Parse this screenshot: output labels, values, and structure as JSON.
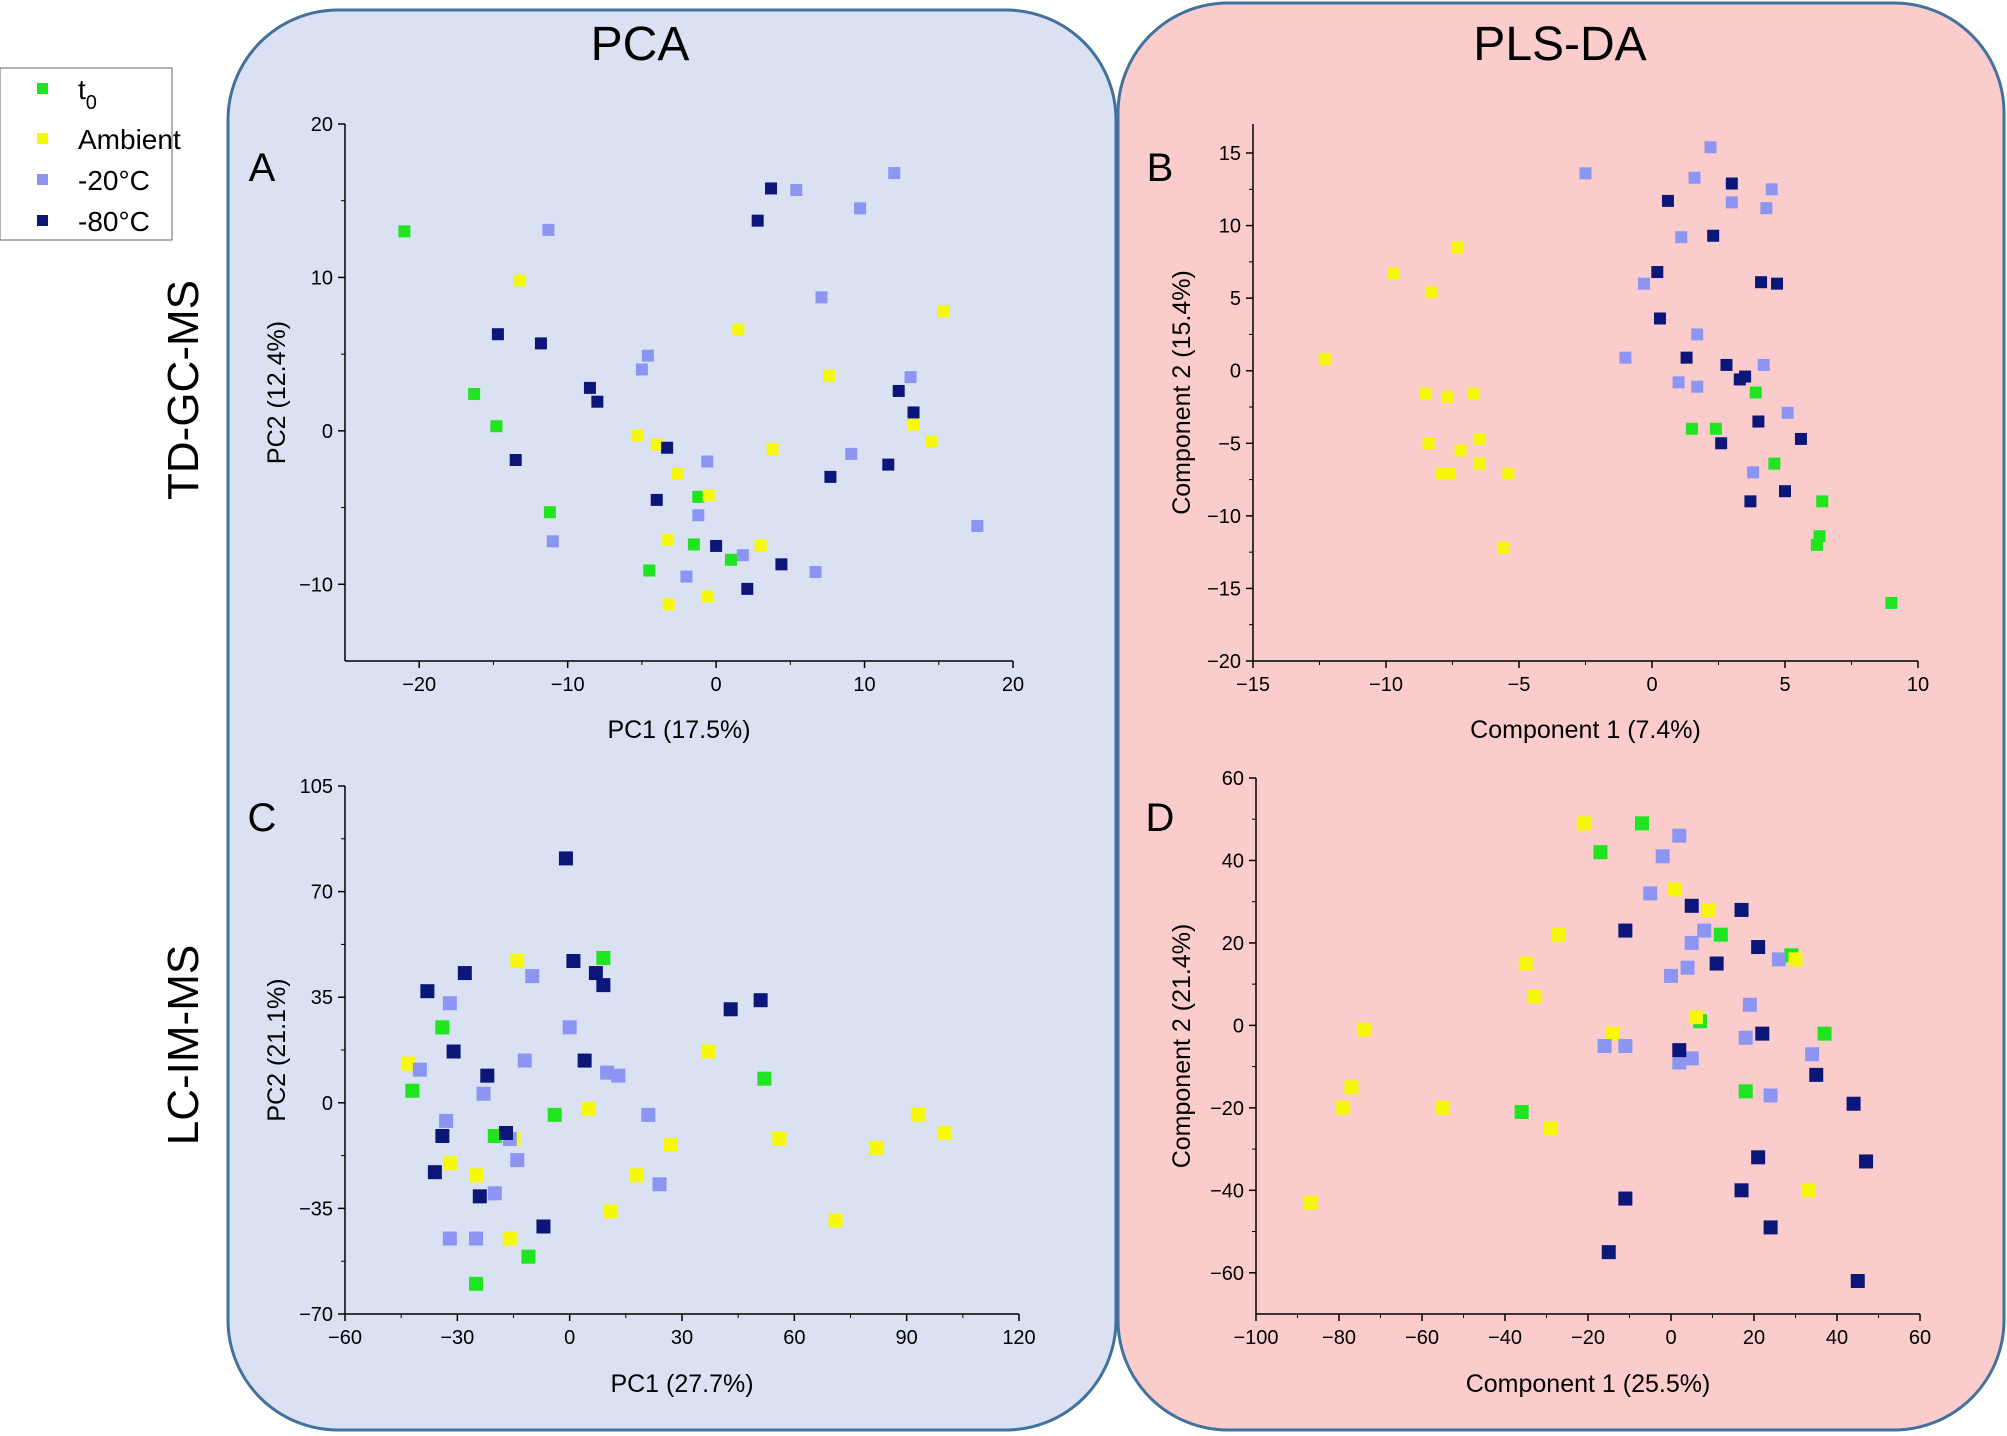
{
  "figure": {
    "pca_title": "PCA",
    "plsda_title": "PLS-DA",
    "row1_label": "TD-GC-MS",
    "row2_label": "LC-IM-MS",
    "colors": {
      "pca_bg": "#d9e1f2",
      "plsda_bg": "#fbcccc",
      "panel_border": "#41719c"
    }
  },
  "legend": {
    "items": [
      {
        "label": "t",
        "sub": "0",
        "color": "#1fe41f"
      },
      {
        "label": "Ambient",
        "sub": "",
        "color": "#f7f70c"
      },
      {
        "label": "-20°C",
        "sub": "",
        "color": "#8c95f2"
      },
      {
        "label": "-80°C",
        "sub": "",
        "color": "#0c1679"
      }
    ]
  },
  "chart_data": [
    {
      "type": "scatter",
      "panel": "A",
      "xlabel": "PC1 (17.5%)",
      "ylabel": "PC2 (12.4%)",
      "xlim": [
        -25,
        20
      ],
      "ylim": [
        -15,
        20
      ],
      "xticks": [
        -20,
        -10,
        0,
        10,
        20
      ],
      "yticks": [
        -10,
        0,
        10,
        20
      ],
      "series": [
        {
          "name": "t0",
          "points": [
            [
              -21,
              13
            ],
            [
              -16.3,
              2.4
            ],
            [
              -14.8,
              0.3
            ],
            [
              -11.2,
              -5.3
            ],
            [
              -4.5,
              -9.1
            ],
            [
              -1.2,
              -4.3
            ],
            [
              -1.5,
              -7.4
            ],
            [
              1,
              -8.4
            ]
          ]
        },
        {
          "name": "Ambient",
          "points": [
            [
              -13.2,
              9.8
            ],
            [
              -5.3,
              -0.3
            ],
            [
              -4,
              -0.9
            ],
            [
              -3.3,
              -7.1
            ],
            [
              -3.2,
              -11.3
            ],
            [
              -2.6,
              -2.8
            ],
            [
              -0.6,
              -10.8
            ],
            [
              -0.5,
              -4.2
            ],
            [
              1.5,
              6.6
            ],
            [
              3,
              -7.5
            ],
            [
              3.8,
              -1.2
            ],
            [
              7.6,
              3.6
            ],
            [
              13.3,
              0.4
            ],
            [
              14.5,
              -0.7
            ],
            [
              15.3,
              7.8
            ]
          ]
        },
        {
          "name": "-20°C",
          "points": [
            [
              -11.3,
              13.1
            ],
            [
              -11,
              -7.2
            ],
            [
              -5,
              4
            ],
            [
              -4.6,
              4.9
            ],
            [
              -2,
              -9.5
            ],
            [
              -1.2,
              -5.5
            ],
            [
              -0.6,
              -2
            ],
            [
              1.8,
              -8.1
            ],
            [
              5.4,
              15.7
            ],
            [
              6.7,
              -9.2
            ],
            [
              7.1,
              8.7
            ],
            [
              9.1,
              -1.5
            ],
            [
              9.7,
              14.5
            ],
            [
              12,
              16.8
            ],
            [
              13.1,
              3.5
            ],
            [
              17.6,
              -6.2
            ]
          ]
        },
        {
          "name": "-80°C",
          "points": [
            [
              -14.7,
              6.3
            ],
            [
              -13.5,
              -1.9
            ],
            [
              -11.8,
              5.7
            ],
            [
              -8.5,
              2.8
            ],
            [
              -8,
              1.9
            ],
            [
              -4,
              -4.5
            ],
            [
              -3.3,
              -1.1
            ],
            [
              0,
              -7.5
            ],
            [
              2.1,
              -10.3
            ],
            [
              2.8,
              13.7
            ],
            [
              3.7,
              15.8
            ],
            [
              4.4,
              -8.7
            ],
            [
              7.7,
              -3
            ],
            [
              11.6,
              -2.2
            ],
            [
              12.3,
              2.6
            ],
            [
              13.3,
              1.2
            ]
          ]
        }
      ]
    },
    {
      "type": "scatter",
      "panel": "B",
      "xlabel": "Component 1 (7.4%)",
      "ylabel": "Component 2 (15.4%)",
      "xlim": [
        -15,
        10
      ],
      "ylim": [
        -20,
        17
      ],
      "xticks": [
        -15,
        -10,
        -5,
        0,
        5,
        10
      ],
      "yticks": [
        -20,
        -15,
        -10,
        -5,
        0,
        5,
        10,
        15
      ],
      "series": [
        {
          "name": "t0",
          "points": [
            [
              1.5,
              -4
            ],
            [
              2.4,
              -4
            ],
            [
              3.9,
              -1.5
            ],
            [
              4.6,
              -6.4
            ],
            [
              6.2,
              -12
            ],
            [
              6.3,
              -11.4
            ],
            [
              6.4,
              -9
            ],
            [
              9,
              -16
            ]
          ]
        },
        {
          "name": "Ambient",
          "points": [
            [
              -12.3,
              0.8
            ],
            [
              -9.7,
              6.7
            ],
            [
              -8.5,
              -1.6
            ],
            [
              -8.4,
              -5
            ],
            [
              -8.3,
              5.4
            ],
            [
              -7.9,
              -7.1
            ],
            [
              -7.6,
              -7.1
            ],
            [
              -7.7,
              -1.8
            ],
            [
              -7.3,
              8.5
            ],
            [
              -7.2,
              -5.5
            ],
            [
              -6.7,
              -1.6
            ],
            [
              -6.5,
              -4.7
            ],
            [
              -6.5,
              -6.4
            ],
            [
              -5.6,
              -12.2
            ],
            [
              -5.4,
              -7.1
            ]
          ]
        },
        {
          "name": "-20°C",
          "points": [
            [
              -2.5,
              13.6
            ],
            [
              -1,
              0.9
            ],
            [
              -0.3,
              6
            ],
            [
              1,
              -0.8
            ],
            [
              1.1,
              9.2
            ],
            [
              1.6,
              13.3
            ],
            [
              1.7,
              -1.1
            ],
            [
              1.7,
              2.5
            ],
            [
              2.2,
              15.4
            ],
            [
              3,
              11.6
            ],
            [
              3.8,
              -7
            ],
            [
              4.2,
              0.4
            ],
            [
              4.3,
              11.2
            ],
            [
              4.5,
              12.5
            ],
            [
              5.1,
              -2.9
            ]
          ]
        },
        {
          "name": "-80°C",
          "points": [
            [
              0.2,
              6.8
            ],
            [
              0.3,
              3.6
            ],
            [
              0.6,
              11.7
            ],
            [
              1.3,
              0.9
            ],
            [
              2.3,
              9.3
            ],
            [
              2.6,
              -5
            ],
            [
              2.8,
              0.4
            ],
            [
              3,
              12.9
            ],
            [
              3.3,
              -0.6
            ],
            [
              3.5,
              -0.4
            ],
            [
              3.7,
              -9
            ],
            [
              4,
              -3.5
            ],
            [
              4.1,
              6.1
            ],
            [
              4.7,
              6
            ],
            [
              5,
              -8.3
            ],
            [
              5.6,
              -4.7
            ]
          ]
        }
      ]
    },
    {
      "type": "scatter",
      "panel": "C",
      "xlabel": "PC1 (27.7%)",
      "ylabel": "PC2 (21.1%)",
      "xlim": [
        -60,
        120
      ],
      "ylim": [
        -70,
        105
      ],
      "xticks": [
        -60,
        -30,
        0,
        30,
        60,
        90,
        120
      ],
      "yticks": [
        -70,
        -35,
        0,
        35,
        70,
        105
      ],
      "series": [
        {
          "name": "t0",
          "points": [
            [
              -42,
              4
            ],
            [
              -34,
              25
            ],
            [
              -25,
              -60
            ],
            [
              -20,
              -11
            ],
            [
              -11,
              -51
            ],
            [
              -4,
              -4
            ],
            [
              9,
              48
            ],
            [
              52,
              8
            ]
          ]
        },
        {
          "name": "Ambient",
          "points": [
            [
              -43,
              13
            ],
            [
              -32,
              -20
            ],
            [
              -25,
              -24
            ],
            [
              -15,
              -12
            ],
            [
              -14,
              47
            ],
            [
              -16,
              -45
            ],
            [
              5,
              -2
            ],
            [
              11,
              -36
            ],
            [
              18,
              -24
            ],
            [
              27,
              -14
            ],
            [
              37,
              17
            ],
            [
              56,
              -12
            ],
            [
              71,
              -39
            ],
            [
              82,
              -15
            ],
            [
              93,
              -4
            ],
            [
              100,
              -10
            ]
          ]
        },
        {
          "name": "-20°C",
          "points": [
            [
              -40,
              11
            ],
            [
              -33,
              -6
            ],
            [
              -32,
              -45
            ],
            [
              -32,
              33
            ],
            [
              -25,
              -45
            ],
            [
              -23,
              3
            ],
            [
              -20,
              -30
            ],
            [
              -16,
              -12
            ],
            [
              -14,
              -19
            ],
            [
              -12,
              14
            ],
            [
              -10,
              42
            ],
            [
              0,
              25
            ],
            [
              10,
              10
            ],
            [
              13,
              9
            ],
            [
              21,
              -4
            ],
            [
              24,
              -27
            ]
          ]
        },
        {
          "name": "-80°C",
          "points": [
            [
              -38,
              37
            ],
            [
              -36,
              -23
            ],
            [
              -34,
              -11
            ],
            [
              -31,
              17
            ],
            [
              -28,
              43
            ],
            [
              -24,
              -31
            ],
            [
              -22,
              9
            ],
            [
              -17,
              -10
            ],
            [
              -7,
              -41
            ],
            [
              -1,
              81
            ],
            [
              1,
              47
            ],
            [
              4,
              14
            ],
            [
              7,
              43
            ],
            [
              9,
              39
            ],
            [
              43,
              31
            ],
            [
              51,
              34
            ]
          ]
        }
      ]
    },
    {
      "type": "scatter",
      "panel": "D",
      "xlabel": "Component 1 (25.5%)",
      "ylabel": "Component 2 (21.4%)",
      "xlim": [
        -100,
        60
      ],
      "ylim": [
        -70,
        60
      ],
      "xticks": [
        -100,
        -80,
        -60,
        -40,
        -20,
        0,
        20,
        40,
        60
      ],
      "yticks": [
        -60,
        -40,
        -20,
        0,
        20,
        40,
        60
      ],
      "series": [
        {
          "name": "t0",
          "points": [
            [
              -36,
              -21
            ],
            [
              -17,
              42
            ],
            [
              -7,
              49
            ],
            [
              7,
              1
            ],
            [
              12,
              22
            ],
            [
              18,
              -16
            ],
            [
              29,
              17
            ],
            [
              37,
              -2
            ]
          ]
        },
        {
          "name": "Ambient",
          "points": [
            [
              -87,
              -43
            ],
            [
              -79,
              -20
            ],
            [
              -77,
              -15
            ],
            [
              -74,
              -1
            ],
            [
              -55,
              -20
            ],
            [
              -35,
              15
            ],
            [
              -33,
              7
            ],
            [
              -29,
              -25
            ],
            [
              -27,
              22
            ],
            [
              -21,
              49
            ],
            [
              -14,
              -2
            ],
            [
              1,
              33
            ],
            [
              6,
              2
            ],
            [
              9,
              28
            ],
            [
              30,
              16
            ],
            [
              33,
              -40
            ]
          ]
        },
        {
          "name": "-20°C",
          "points": [
            [
              -16,
              -5
            ],
            [
              -11,
              -5
            ],
            [
              -5,
              32
            ],
            [
              -2,
              41
            ],
            [
              0,
              12
            ],
            [
              2,
              46
            ],
            [
              2,
              -9
            ],
            [
              4,
              14
            ],
            [
              5,
              -8
            ],
            [
              5,
              20
            ],
            [
              8,
              23
            ],
            [
              18,
              -3
            ],
            [
              19,
              5
            ],
            [
              24,
              -17
            ],
            [
              26,
              16
            ],
            [
              34,
              -7
            ]
          ]
        },
        {
          "name": "-80°C",
          "points": [
            [
              -15,
              -55
            ],
            [
              -11,
              -42
            ],
            [
              -11,
              23
            ],
            [
              2,
              -6
            ],
            [
              5,
              29
            ],
            [
              11,
              15
            ],
            [
              17,
              -40
            ],
            [
              17,
              28
            ],
            [
              21,
              -32
            ],
            [
              21,
              19
            ],
            [
              22,
              -2
            ],
            [
              24,
              -49
            ],
            [
              35,
              -12
            ],
            [
              44,
              -19
            ],
            [
              45,
              -62
            ],
            [
              47,
              -33
            ]
          ]
        }
      ]
    }
  ]
}
